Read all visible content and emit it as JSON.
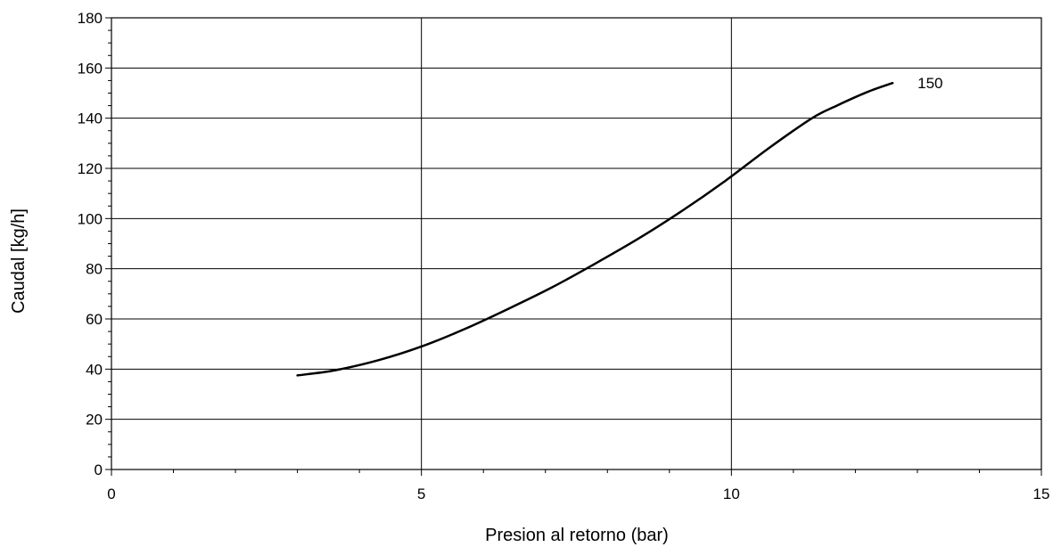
{
  "chart_data": {
    "type": "line",
    "title": "",
    "xlabel": "Presion al retorno  (bar)",
    "ylabel": "Caudal [kg/h]",
    "xlim": [
      0,
      15
    ],
    "ylim": [
      0,
      180
    ],
    "x_ticks": [
      0,
      5,
      10,
      15
    ],
    "y_ticks": [
      0,
      20,
      40,
      60,
      80,
      100,
      120,
      140,
      160,
      180
    ],
    "x_minor_step": 1,
    "y_minor_step": 5,
    "grid": {
      "x_major": true,
      "y_major": true
    },
    "series": [
      {
        "name": "150",
        "color": "#000000",
        "x": [
          3.0,
          3.6,
          4.3,
          5.0,
          5.7,
          6.4,
          7.1,
          7.8,
          8.5,
          9.2,
          9.9,
          10.6,
          11.3,
          11.7,
          12.2,
          12.6
        ],
        "y": [
          37.5,
          39.5,
          43.5,
          49,
          56,
          64,
          72.5,
          82,
          92,
          103,
          115,
          128,
          140,
          145,
          150.5,
          154
        ]
      }
    ]
  }
}
